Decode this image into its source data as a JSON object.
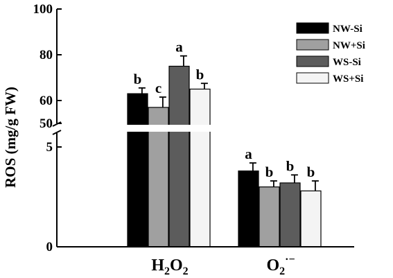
{
  "chart_data": {
    "type": "bar",
    "ylabel": "ROS (mg/g FW)",
    "y_axis_break": true,
    "lower_segment_ylim": [
      0,
      5.5
    ],
    "upper_segment_ylim": [
      48,
      100
    ],
    "lower_ticks": [
      {
        "value": 0,
        "label": "0"
      },
      {
        "value": 5,
        "label": "5"
      }
    ],
    "upper_ticks": [
      {
        "value": 50,
        "label": "50"
      },
      {
        "value": 60,
        "label": "60"
      },
      {
        "value": 80,
        "label": "80"
      },
      {
        "value": 100,
        "label": "100"
      }
    ],
    "categories": [
      {
        "id": "h2o2",
        "main": "H",
        "sub": "2",
        "main2": "O",
        "sub2": "2",
        "sup": ""
      },
      {
        "id": "o2",
        "main": "O",
        "sub": "2",
        "main2": "",
        "sub2": "",
        "sup": "·−"
      }
    ],
    "legend_position": "top-right",
    "series": [
      {
        "name": "NW-Si",
        "color": "#000000",
        "values": [
          63,
          3.8
        ],
        "errors": [
          2.5,
          0.4
        ],
        "sig": [
          "b",
          "a"
        ]
      },
      {
        "name": "NW+Si",
        "color": "#a0a0a0",
        "values": [
          57,
          3.0
        ],
        "errors": [
          4.5,
          0.3
        ],
        "sig": [
          "c",
          "b"
        ]
      },
      {
        "name": "WS-Si",
        "color": "#5c5c5c",
        "values": [
          75,
          3.2
        ],
        "errors": [
          4.5,
          0.4
        ],
        "sig": [
          "a",
          "b"
        ]
      },
      {
        "name": "WS+Si",
        "color": "#f4f4f4",
        "values": [
          65,
          2.8
        ],
        "errors": [
          2.5,
          0.5
        ],
        "sig": [
          "b",
          "b"
        ]
      }
    ]
  }
}
